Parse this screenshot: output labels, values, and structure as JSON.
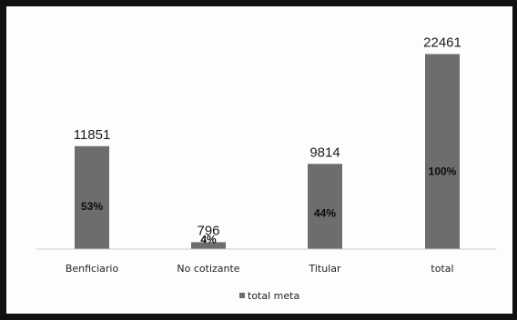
{
  "chart_data": {
    "type": "bar",
    "categories": [
      "Benficiario",
      "No cotizante",
      "Titular",
      "total"
    ],
    "series": [
      {
        "name": "total meta",
        "values": [
          11851,
          796,
          9814,
          22461
        ],
        "percent_labels": [
          "53%",
          "4%",
          "44%",
          "100%"
        ]
      }
    ],
    "ylim": [
      0,
      24500
    ],
    "grid": false,
    "legend_position": "bottom",
    "bar_color": "#6d6d6d"
  }
}
